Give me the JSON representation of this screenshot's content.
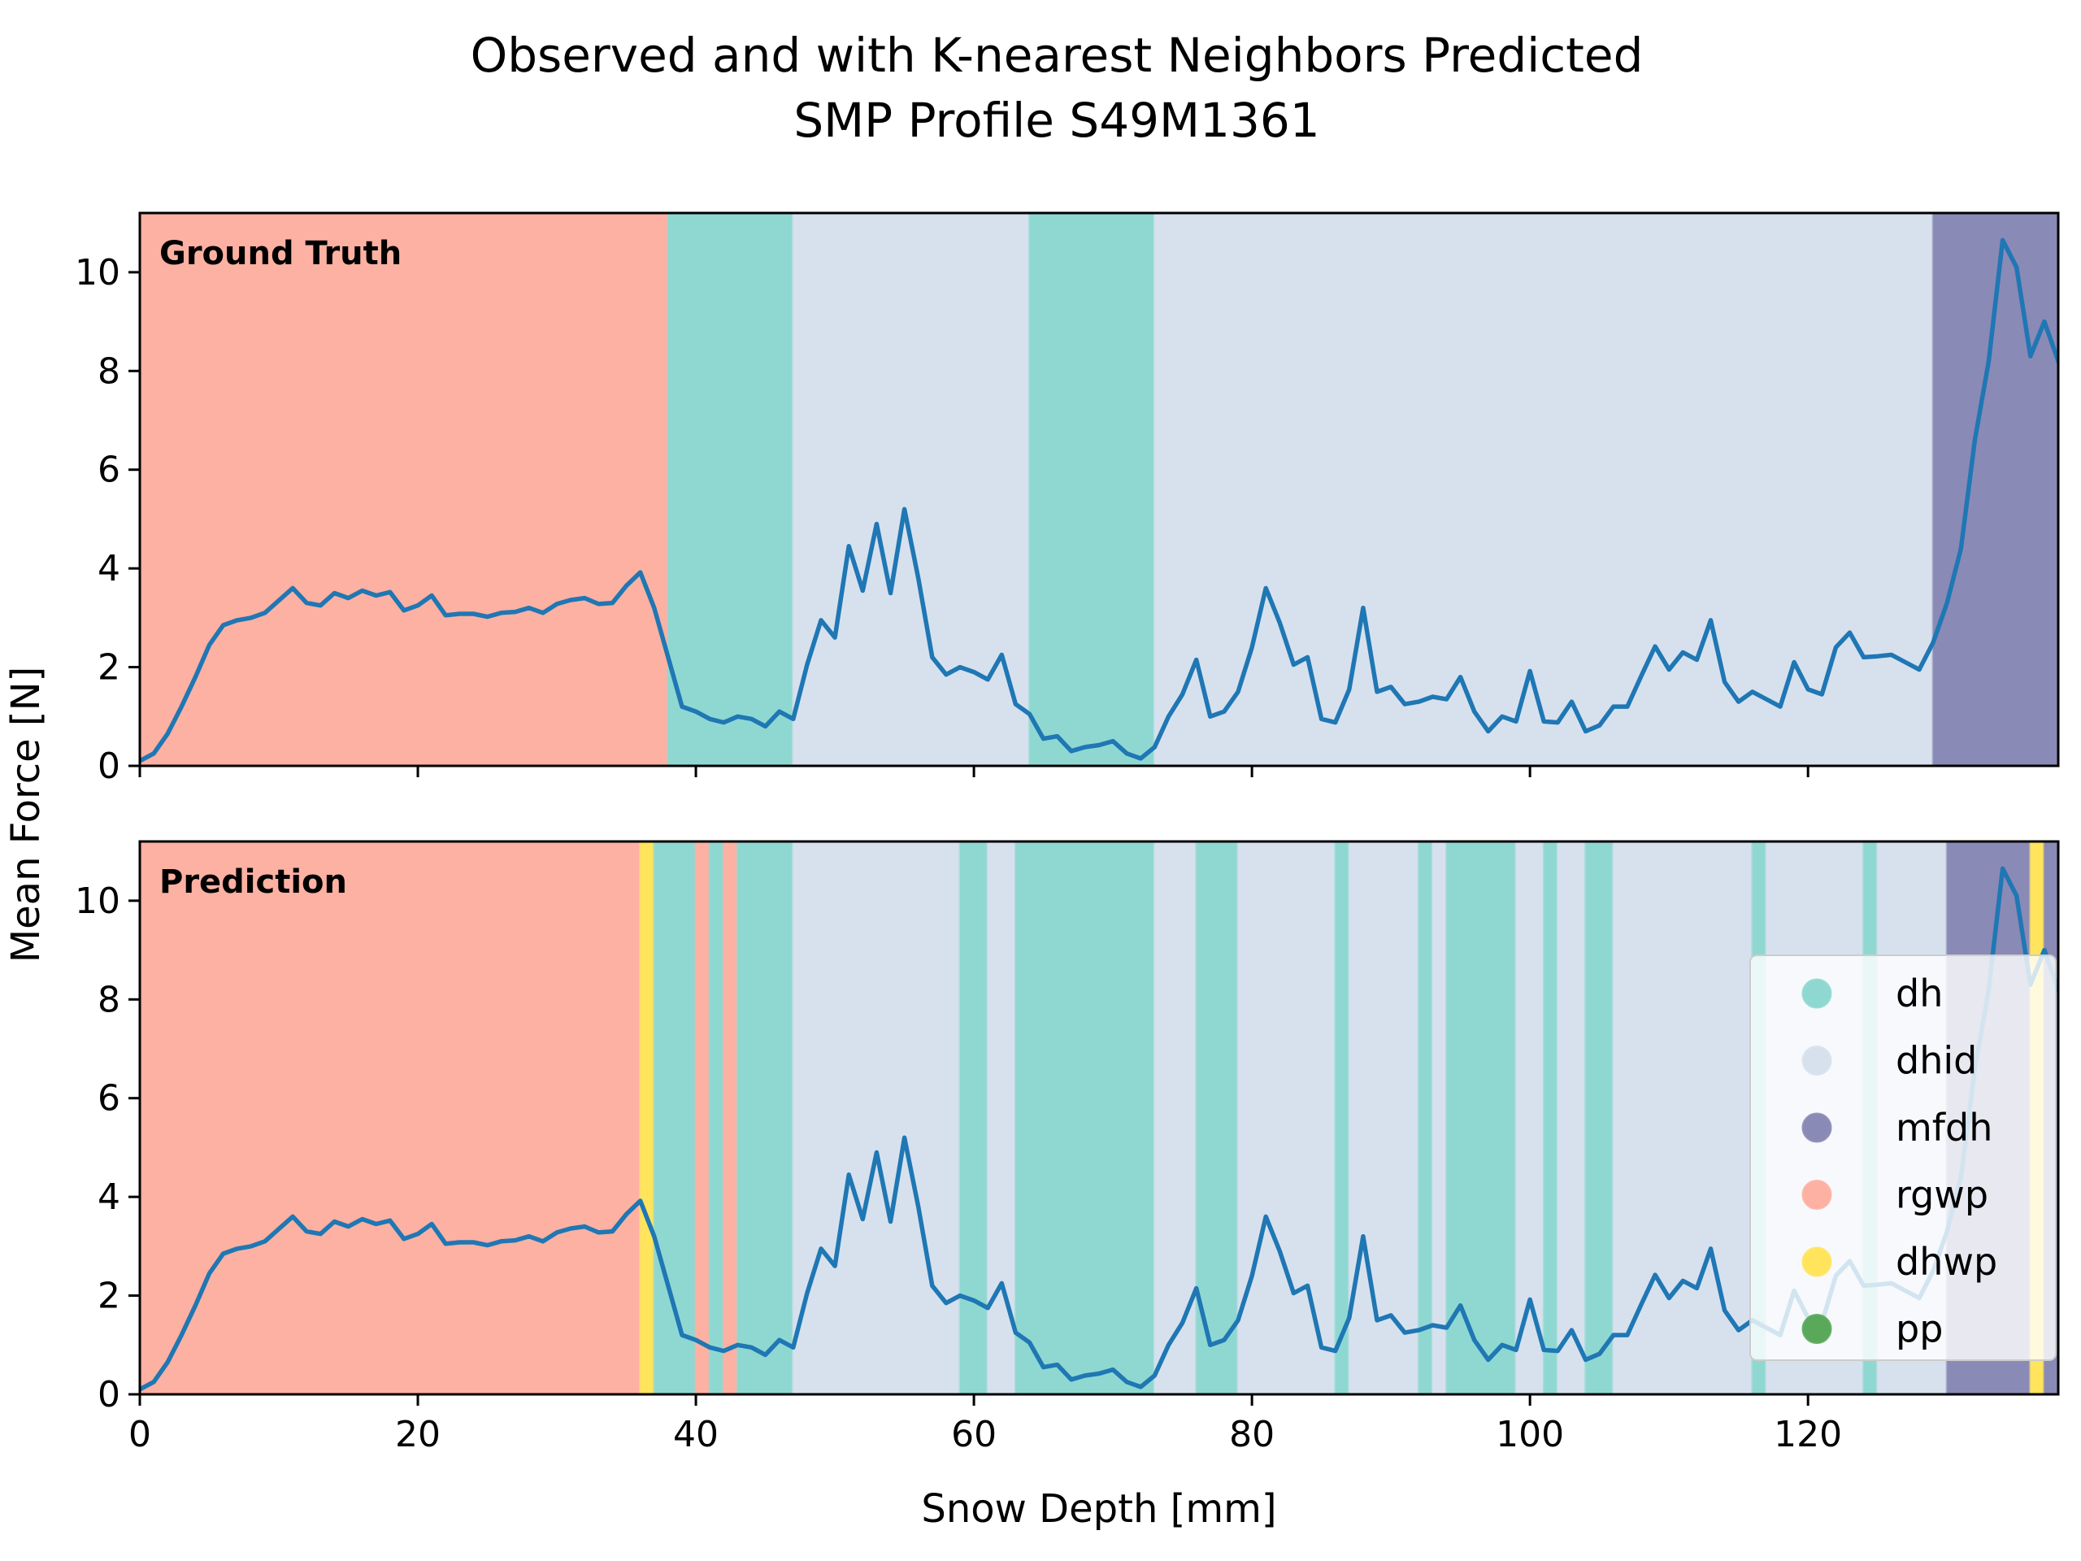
{
  "chart_data": {
    "type": "line",
    "title": "Observed and with K-nearest Neighbors Predicted",
    "subtitle": "SMP Profile S49M1361",
    "xlabel": "Snow Depth [mm]",
    "ylabel": "Mean Force [N]",
    "xlim": [
      0,
      138
    ],
    "ylim": [
      0,
      11.2
    ],
    "xticks": [
      0,
      20,
      40,
      60,
      80,
      100,
      120
    ],
    "yticks": [
      0,
      2,
      4,
      6,
      8,
      10
    ],
    "legend_position": "lower-right",
    "classes": [
      {
        "name": "dh",
        "color": "#8fd8d2"
      },
      {
        "name": "dhid",
        "color": "#d7e1ee"
      },
      {
        "name": "mfdh",
        "color": "#8a8ab6"
      },
      {
        "name": "rgwp",
        "color": "#fdb1a2"
      },
      {
        "name": "dhwp",
        "color": "#ffe45c"
      },
      {
        "name": "pp",
        "color": "#5aa85a"
      }
    ],
    "panels": [
      {
        "label": "Ground Truth",
        "segments": [
          {
            "start": 0,
            "end": 38,
            "class": "rgwp"
          },
          {
            "start": 38,
            "end": 47,
            "class": "dh"
          },
          {
            "start": 47,
            "end": 64,
            "class": "dhid"
          },
          {
            "start": 64,
            "end": 73,
            "class": "dh"
          },
          {
            "start": 73,
            "end": 129,
            "class": "dhid"
          },
          {
            "start": 129,
            "end": 138,
            "class": "mfdh"
          }
        ]
      },
      {
        "label": "Prediction",
        "segments": [
          {
            "start": 0,
            "end": 36,
            "class": "rgwp"
          },
          {
            "start": 36,
            "end": 37,
            "class": "dhwp"
          },
          {
            "start": 37,
            "end": 40,
            "class": "dh"
          },
          {
            "start": 40,
            "end": 41,
            "class": "rgwp"
          },
          {
            "start": 41,
            "end": 42,
            "class": "dh"
          },
          {
            "start": 42,
            "end": 43,
            "class": "rgwp"
          },
          {
            "start": 43,
            "end": 47,
            "class": "dh"
          },
          {
            "start": 47,
            "end": 59,
            "class": "dhid"
          },
          {
            "start": 59,
            "end": 61,
            "class": "dh"
          },
          {
            "start": 61,
            "end": 63,
            "class": "dhid"
          },
          {
            "start": 63,
            "end": 73,
            "class": "dh"
          },
          {
            "start": 73,
            "end": 76,
            "class": "dhid"
          },
          {
            "start": 76,
            "end": 79,
            "class": "dh"
          },
          {
            "start": 79,
            "end": 86,
            "class": "dhid"
          },
          {
            "start": 86,
            "end": 87,
            "class": "dh"
          },
          {
            "start": 87,
            "end": 92,
            "class": "dhid"
          },
          {
            "start": 92,
            "end": 93,
            "class": "dh"
          },
          {
            "start": 93,
            "end": 94,
            "class": "dhid"
          },
          {
            "start": 94,
            "end": 99,
            "class": "dh"
          },
          {
            "start": 99,
            "end": 101,
            "class": "dhid"
          },
          {
            "start": 101,
            "end": 102,
            "class": "dh"
          },
          {
            "start": 102,
            "end": 104,
            "class": "dhid"
          },
          {
            "start": 104,
            "end": 106,
            "class": "dh"
          },
          {
            "start": 106,
            "end": 116,
            "class": "dhid"
          },
          {
            "start": 116,
            "end": 117,
            "class": "dh"
          },
          {
            "start": 117,
            "end": 124,
            "class": "dhid"
          },
          {
            "start": 124,
            "end": 125,
            "class": "dh"
          },
          {
            "start": 125,
            "end": 130,
            "class": "dhid"
          },
          {
            "start": 130,
            "end": 136,
            "class": "mfdh"
          },
          {
            "start": 136,
            "end": 137,
            "class": "dhwp"
          },
          {
            "start": 137,
            "end": 138,
            "class": "mfdh"
          }
        ]
      }
    ],
    "series": [
      {
        "x": [
          0,
          1,
          2,
          3,
          4,
          5,
          6,
          7,
          8,
          9,
          10,
          11,
          12,
          13,
          14,
          15,
          16,
          17,
          18,
          19,
          20,
          21,
          22,
          23,
          24,
          25,
          26,
          27,
          28,
          29,
          30,
          31,
          32,
          33,
          34,
          35,
          36,
          37,
          38,
          39,
          40,
          41,
          42,
          43,
          44,
          45,
          46,
          47,
          48,
          49,
          50,
          51,
          52,
          53,
          54,
          55,
          56,
          57,
          58,
          59,
          60,
          61,
          62,
          63,
          64,
          65,
          66,
          67,
          68,
          69,
          70,
          71,
          72,
          73,
          74,
          75,
          76,
          77,
          78,
          79,
          80,
          81,
          82,
          83,
          84,
          85,
          86,
          87,
          88,
          89,
          90,
          91,
          92,
          93,
          94,
          95,
          96,
          97,
          98,
          99,
          100,
          101,
          102,
          103,
          104,
          105,
          106,
          107,
          108,
          109,
          110,
          111,
          112,
          113,
          114,
          115,
          116,
          117,
          118,
          119,
          120,
          121,
          122,
          123,
          124,
          125,
          126,
          127,
          128,
          129,
          130,
          131,
          132,
          133,
          134,
          135,
          136,
          137,
          138
        ],
        "values": [
          0.1,
          0.25,
          0.65,
          1.2,
          1.8,
          2.45,
          2.85,
          2.95,
          3.0,
          3.1,
          3.35,
          3.6,
          3.3,
          3.25,
          3.5,
          3.4,
          3.55,
          3.45,
          3.52,
          3.15,
          3.25,
          3.45,
          3.05,
          3.08,
          3.08,
          3.02,
          3.1,
          3.12,
          3.2,
          3.1,
          3.28,
          3.36,
          3.4,
          3.28,
          3.3,
          3.65,
          3.92,
          3.2,
          2.2,
          1.2,
          1.1,
          0.95,
          0.88,
          1.0,
          0.95,
          0.8,
          1.1,
          0.95,
          2.05,
          2.95,
          2.6,
          4.45,
          3.55,
          4.9,
          3.5,
          5.2,
          3.8,
          2.2,
          1.85,
          2.0,
          1.9,
          1.75,
          2.25,
          1.25,
          1.05,
          0.55,
          0.6,
          0.3,
          0.38,
          0.42,
          0.5,
          0.25,
          0.15,
          0.38,
          1.0,
          1.45,
          2.15,
          1.0,
          1.1,
          1.5,
          2.4,
          3.6,
          2.9,
          2.05,
          2.2,
          0.95,
          0.88,
          1.55,
          3.2,
          1.5,
          1.6,
          1.25,
          1.3,
          1.4,
          1.35,
          1.8,
          1.1,
          0.7,
          1.0,
          0.9,
          1.92,
          0.9,
          0.88,
          1.3,
          0.7,
          0.82,
          1.2,
          1.2,
          1.82,
          2.42,
          1.95,
          2.3,
          2.15,
          2.95,
          1.7,
          1.3,
          1.5,
          1.35,
          1.2,
          2.1,
          1.55,
          1.45,
          2.4,
          2.7,
          2.2,
          2.22,
          2.25,
          2.1,
          1.95,
          2.5,
          3.3,
          4.4,
          6.6,
          8.2,
          10.65,
          10.1,
          8.3,
          9.0,
          8.2
        ]
      }
    ]
  }
}
